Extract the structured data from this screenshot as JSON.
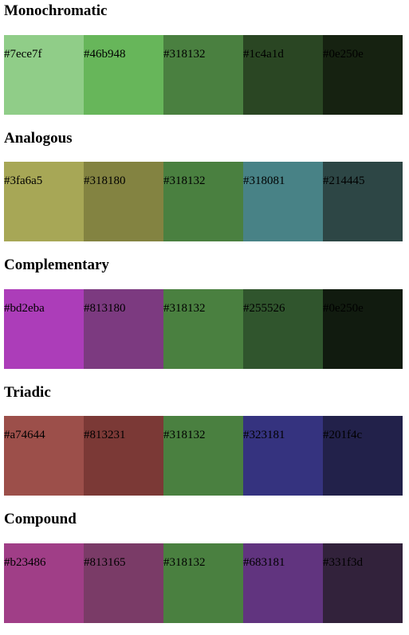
{
  "schemes": [
    {
      "title": "Monochromatic",
      "swatches": [
        {
          "code": "#7ece7f",
          "color": "#90cd88"
        },
        {
          "code": "#46b948",
          "color": "#67b65a"
        },
        {
          "code": "#318132",
          "color": "#4a8040"
        },
        {
          "code": "#1c4a1d",
          "color": "#2a4623"
        },
        {
          "code": "#0e250e",
          "color": "#162211"
        }
      ]
    },
    {
      "title": "Analogous",
      "swatches": [
        {
          "code": "#3fa6a5",
          "color": "#a7a756"
        },
        {
          "code": "#318180",
          "color": "#838341"
        },
        {
          "code": "#318132",
          "color": "#4a8040"
        },
        {
          "code": "#318081",
          "color": "#488286"
        },
        {
          "code": "#214445",
          "color": "#2d4645"
        }
      ]
    },
    {
      "title": "Complementary",
      "swatches": [
        {
          "code": "#bd2eba",
          "color": "#ac3db9"
        },
        {
          "code": "#813180",
          "color": "#7c3a80"
        },
        {
          "code": "#318132",
          "color": "#4a8040"
        },
        {
          "code": "#255526",
          "color": "#30552d"
        },
        {
          "code": "#0e250e",
          "color": "#111b0f"
        }
      ]
    },
    {
      "title": "Triadic",
      "swatches": [
        {
          "code": "#a74644",
          "color": "#9c4f4a"
        },
        {
          "code": "#813231",
          "color": "#7b3936"
        },
        {
          "code": "#318132",
          "color": "#4a8040"
        },
        {
          "code": "#323181",
          "color": "#35337f"
        },
        {
          "code": "#201f4c",
          "color": "#22214a"
        }
      ]
    },
    {
      "title": "Compound",
      "swatches": [
        {
          "code": "#b23486",
          "color": "#a03e87"
        },
        {
          "code": "#813165",
          "color": "#7a3b67"
        },
        {
          "code": "#318132",
          "color": "#4a8040"
        },
        {
          "code": "#683181",
          "color": "#61347f"
        },
        {
          "code": "#331f3d",
          "color": "#32223b"
        }
      ]
    }
  ]
}
